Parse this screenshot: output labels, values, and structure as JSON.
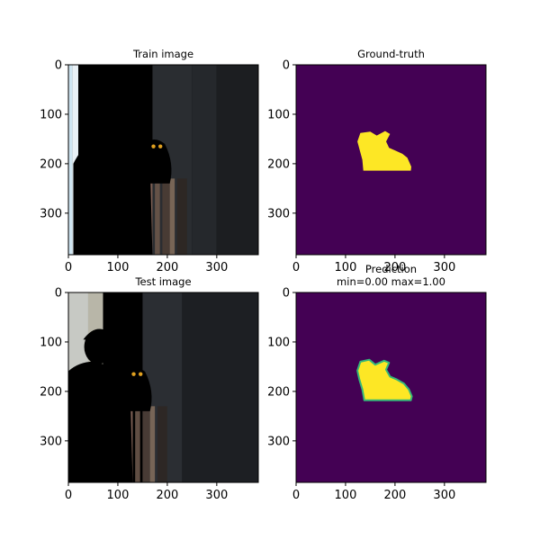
{
  "chart_data": [
    {
      "type": "image",
      "title": "Train image",
      "xlim": [
        0,
        384
      ],
      "ylim": [
        384,
        0
      ],
      "xticks": [
        0,
        100,
        200,
        300
      ],
      "yticks": [
        0,
        100,
        200,
        300
      ],
      "content": "photo-man-with-owl",
      "colors": {
        "background": "#1f2226",
        "jacket": "#3a4166",
        "cap": "#f2d84a",
        "skin": "#d9a48c",
        "owl": "#5e4b3b"
      }
    },
    {
      "type": "heatmap",
      "title": "Ground-truth",
      "xlim": [
        0,
        384
      ],
      "ylim": [
        384,
        0
      ],
      "xticks": [
        0,
        100,
        200,
        300
      ],
      "yticks": [
        0,
        100,
        200,
        300
      ],
      "colormap": "viridis",
      "vmin": 0,
      "vmax": 1,
      "colors": {
        "low": "#440154",
        "high": "#fde725"
      },
      "mask_outline": [
        [
          130,
          138
        ],
        [
          150,
          135
        ],
        [
          163,
          143
        ],
        [
          180,
          134
        ],
        [
          190,
          140
        ],
        [
          182,
          155
        ],
        [
          188,
          168
        ],
        [
          200,
          173
        ],
        [
          215,
          180
        ],
        [
          225,
          188
        ],
        [
          233,
          206
        ],
        [
          232,
          214
        ],
        [
          136,
          214
        ],
        [
          134,
          192
        ],
        [
          128,
          170
        ],
        [
          124,
          155
        ]
      ]
    },
    {
      "type": "image",
      "title": "Test image",
      "xlim": [
        0,
        384
      ],
      "ylim": [
        384,
        0
      ],
      "xticks": [
        0,
        100,
        200,
        300
      ],
      "yticks": [
        0,
        100,
        200,
        300
      ],
      "content": "photo-man-with-owl",
      "colors": {
        "background": "#1f2226",
        "jacket": "#3a4166",
        "cap": "#f2d84a",
        "skin": "#d9a48c",
        "owl": "#5e4b3b"
      }
    },
    {
      "type": "heatmap",
      "title": "Prediction\nmin=0.00 max=1.00",
      "xlim": [
        0,
        384
      ],
      "ylim": [
        384,
        0
      ],
      "xticks": [
        0,
        100,
        200,
        300
      ],
      "yticks": [
        0,
        100,
        200,
        300
      ],
      "colormap": "viridis",
      "vmin": 0.0,
      "vmax": 1.0,
      "colors": {
        "low": "#440154",
        "high": "#fde725",
        "edge": "#35b779"
      },
      "mask_outline": [
        [
          130,
          140
        ],
        [
          148,
          136
        ],
        [
          160,
          146
        ],
        [
          178,
          138
        ],
        [
          188,
          142
        ],
        [
          182,
          156
        ],
        [
          190,
          170
        ],
        [
          204,
          176
        ],
        [
          218,
          184
        ],
        [
          228,
          196
        ],
        [
          234,
          210
        ],
        [
          232,
          218
        ],
        [
          138,
          218
        ],
        [
          134,
          196
        ],
        [
          128,
          176
        ],
        [
          124,
          158
        ]
      ]
    }
  ]
}
